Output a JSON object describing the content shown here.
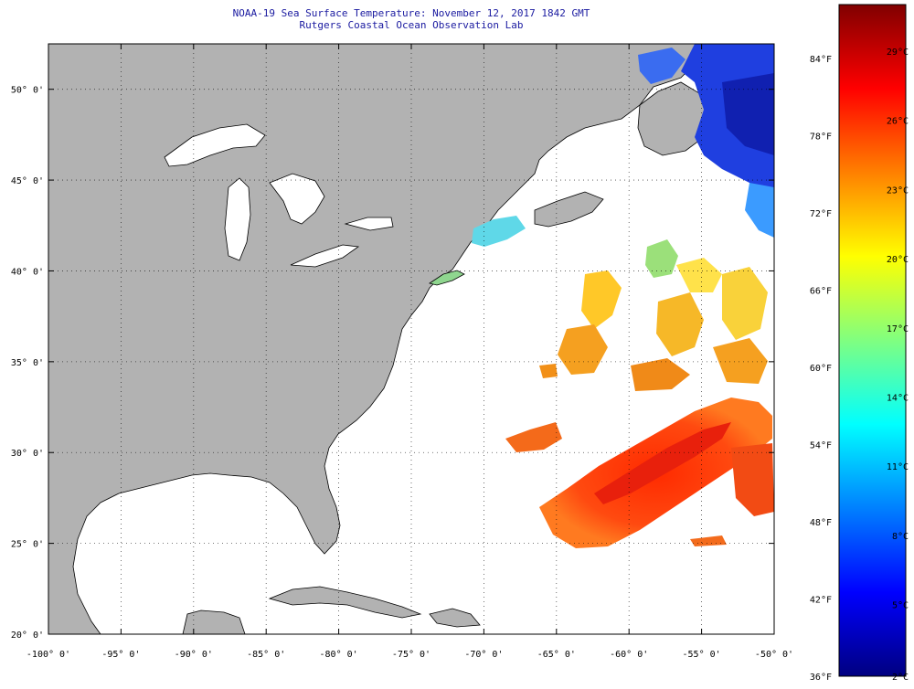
{
  "title": {
    "line1": "NOAA-19 Sea Surface Temperature:  November 12, 2017 1842 GMT",
    "line2": "Rutgers Coastal Ocean Observation Lab"
  },
  "map": {
    "lon_range": [
      -100,
      -50
    ],
    "lat_range": [
      20,
      52.5
    ],
    "lon_ticks": [
      -100,
      -95,
      -90,
      -85,
      -80,
      -75,
      -70,
      -65,
      -60,
      -55,
      -50
    ],
    "lon_tick_labels": [
      "-100° 0'",
      "-95° 0'",
      "-90° 0'",
      "-85° 0'",
      "-80° 0'",
      "-75° 0'",
      "-70° 0'",
      "-65° 0'",
      "-60° 0'",
      "-55° 0'",
      "-50° 0'"
    ],
    "lat_ticks": [
      20,
      25,
      30,
      35,
      40,
      45,
      50
    ],
    "lat_tick_labels": [
      "20° 0'",
      "25° 0'",
      "30° 0'",
      "35° 0'",
      "40° 0'",
      "45° 0'",
      "50° 0'"
    ],
    "grid": "dotted",
    "colors": {
      "land": "#b2b2b2",
      "ocean_no_data": "#ffffff",
      "coast": "#000000"
    }
  },
  "colorbar": {
    "fahrenheit_labels": [
      "84°F",
      "78°F",
      "72°F",
      "66°F",
      "60°F",
      "54°F",
      "48°F",
      "42°F",
      "36°F"
    ],
    "celsius_labels": [
      "29°C",
      "26°C",
      "23°C",
      "20°C",
      "17°C",
      "14°C",
      "11°C",
      "8°C",
      "5°C",
      "2°C"
    ],
    "scale_colors": [
      "#000080",
      "#0000ff",
      "#0080ff",
      "#00ffff",
      "#80ff80",
      "#ffff00",
      "#ff8000",
      "#ff0000",
      "#800000"
    ]
  }
}
